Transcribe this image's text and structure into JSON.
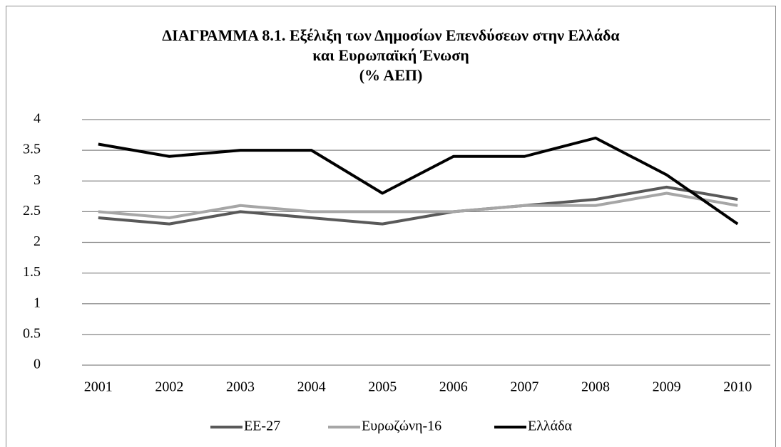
{
  "chart_data": {
    "type": "line",
    "title": [
      "ΔΙΑΓΡΑΜΜΑ 8.1. Εξέλιξη των Δημοσίων Επενδύσεων στην Ελλάδα",
      "και Ευρωπαϊκή Ένωση",
      "(% ΑΕΠ)"
    ],
    "categories": [
      "2001",
      "2002",
      "2003",
      "2004",
      "2005",
      "2006",
      "2007",
      "2008",
      "2009",
      "2010"
    ],
    "series": [
      {
        "name": "ΕΕ-27",
        "color": "#595959",
        "values": [
          2.4,
          2.3,
          2.5,
          2.4,
          2.3,
          2.5,
          2.6,
          2.7,
          2.9,
          2.7
        ]
      },
      {
        "name": "Ευρωζώνη-16",
        "color": "#a6a6a6",
        "values": [
          2.5,
          2.4,
          2.6,
          2.5,
          2.5,
          2.5,
          2.6,
          2.6,
          2.8,
          2.6
        ]
      },
      {
        "name": "Ελλάδα",
        "color": "#000000",
        "values": [
          3.6,
          3.4,
          3.5,
          3.5,
          2.8,
          3.4,
          3.4,
          3.7,
          3.1,
          2.3
        ]
      }
    ],
    "ylim": [
      0,
      4
    ],
    "yticks": [
      0,
      0.5,
      1,
      1.5,
      2,
      2.5,
      3,
      3.5,
      4
    ],
    "grid": true,
    "legend": "bottom"
  }
}
